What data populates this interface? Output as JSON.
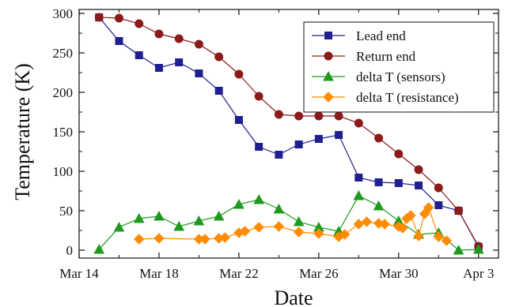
{
  "chart_data": {
    "type": "line",
    "xlabel": "Date",
    "ylabel": "Temperature (K)",
    "x_ticks": [
      "Mar 14",
      "Mar 18",
      "Mar 22",
      "Mar 26",
      "Mar 30",
      "Apr 3"
    ],
    "y_ticks": [
      "0",
      "50",
      "100",
      "150",
      "200",
      "250",
      "300"
    ],
    "xlim": [
      "2019-03-14",
      "2019-04-04"
    ],
    "ylim": [
      -10,
      305
    ],
    "grid": false,
    "legend_position": "top-right",
    "series": [
      {
        "name": "Lead end",
        "color": "#1f1f8f",
        "marker": "square",
        "points": [
          [
            "2019-03-15",
            295
          ],
          [
            "2019-03-16",
            265
          ],
          [
            "2019-03-17",
            247
          ],
          [
            "2019-03-18",
            231
          ],
          [
            "2019-03-19",
            238
          ],
          [
            "2019-03-20",
            224
          ],
          [
            "2019-03-21",
            202
          ],
          [
            "2019-03-22",
            165
          ],
          [
            "2019-03-23",
            131
          ],
          [
            "2019-03-24",
            121
          ],
          [
            "2019-03-25",
            134
          ],
          [
            "2019-03-26",
            141
          ],
          [
            "2019-03-27",
            146
          ],
          [
            "2019-03-28",
            92
          ],
          [
            "2019-03-29",
            86
          ],
          [
            "2019-03-30",
            85
          ],
          [
            "2019-03-31",
            82
          ],
          [
            "2019-04-01",
            57
          ],
          [
            "2019-04-02",
            50
          ],
          [
            "2019-04-03",
            4
          ]
        ]
      },
      {
        "name": "Return end",
        "color": "#8b1a1a",
        "marker": "circle",
        "points": [
          [
            "2019-03-15",
            295
          ],
          [
            "2019-03-16",
            294
          ],
          [
            "2019-03-17",
            287
          ],
          [
            "2019-03-18",
            274
          ],
          [
            "2019-03-19",
            268
          ],
          [
            "2019-03-20",
            261
          ],
          [
            "2019-03-21",
            245
          ],
          [
            "2019-03-22",
            223
          ],
          [
            "2019-03-23",
            195
          ],
          [
            "2019-03-24",
            172
          ],
          [
            "2019-03-25",
            170
          ],
          [
            "2019-03-26",
            170
          ],
          [
            "2019-03-27",
            170
          ],
          [
            "2019-03-28",
            161
          ],
          [
            "2019-03-29",
            142
          ],
          [
            "2019-03-30",
            122
          ],
          [
            "2019-03-31",
            102
          ],
          [
            "2019-04-01",
            79
          ],
          [
            "2019-04-02",
            50
          ],
          [
            "2019-04-03",
            5
          ]
        ]
      },
      {
        "name": "delta T (sensors)",
        "color": "#1f9a1f",
        "marker": "triangle",
        "points": [
          [
            "2019-03-15",
            1
          ],
          [
            "2019-03-16",
            29
          ],
          [
            "2019-03-17",
            40
          ],
          [
            "2019-03-18",
            43
          ],
          [
            "2019-03-19",
            30
          ],
          [
            "2019-03-20",
            37
          ],
          [
            "2019-03-21",
            43
          ],
          [
            "2019-03-22",
            58
          ],
          [
            "2019-03-23",
            64
          ],
          [
            "2019-03-24",
            52
          ],
          [
            "2019-03-25",
            36
          ],
          [
            "2019-03-26",
            29
          ],
          [
            "2019-03-27",
            24
          ],
          [
            "2019-03-28",
            69
          ],
          [
            "2019-03-29",
            56
          ],
          [
            "2019-03-30",
            37
          ],
          [
            "2019-03-31",
            20
          ],
          [
            "2019-04-01",
            22
          ],
          [
            "2019-04-02",
            0
          ],
          [
            "2019-04-03",
            1
          ]
        ]
      },
      {
        "name": "delta T (resistance)",
        "color": "#ff8c00",
        "marker": "diamond",
        "points": [
          [
            "2019-03-17",
            14
          ],
          [
            "2019-03-18",
            15
          ],
          [
            "2019-03-20",
            14
          ],
          [
            "2019-03-20.3",
            14
          ],
          [
            "2019-03-21",
            15
          ],
          [
            "2019-03-21.3",
            16
          ],
          [
            "2019-03-22",
            22
          ],
          [
            "2019-03-22.3",
            24
          ],
          [
            "2019-03-23",
            29
          ],
          [
            "2019-03-24",
            30
          ],
          [
            "2019-03-25",
            23
          ],
          [
            "2019-03-26",
            21
          ],
          [
            "2019-03-27",
            17
          ],
          [
            "2019-03-27.3",
            20
          ],
          [
            "2019-03-28",
            33
          ],
          [
            "2019-03-28.4",
            36
          ],
          [
            "2019-03-29",
            34
          ],
          [
            "2019-03-29.3",
            33
          ],
          [
            "2019-03-30",
            30
          ],
          [
            "2019-03-30.2",
            28
          ],
          [
            "2019-03-30.4",
            40
          ],
          [
            "2019-03-30.6",
            44
          ],
          [
            "2019-03-31",
            18
          ],
          [
            "2019-03-31.3",
            46
          ],
          [
            "2019-03-31.5",
            54
          ],
          [
            "2019-04-01",
            17
          ],
          [
            "2019-04-01.4",
            12
          ]
        ]
      }
    ]
  }
}
